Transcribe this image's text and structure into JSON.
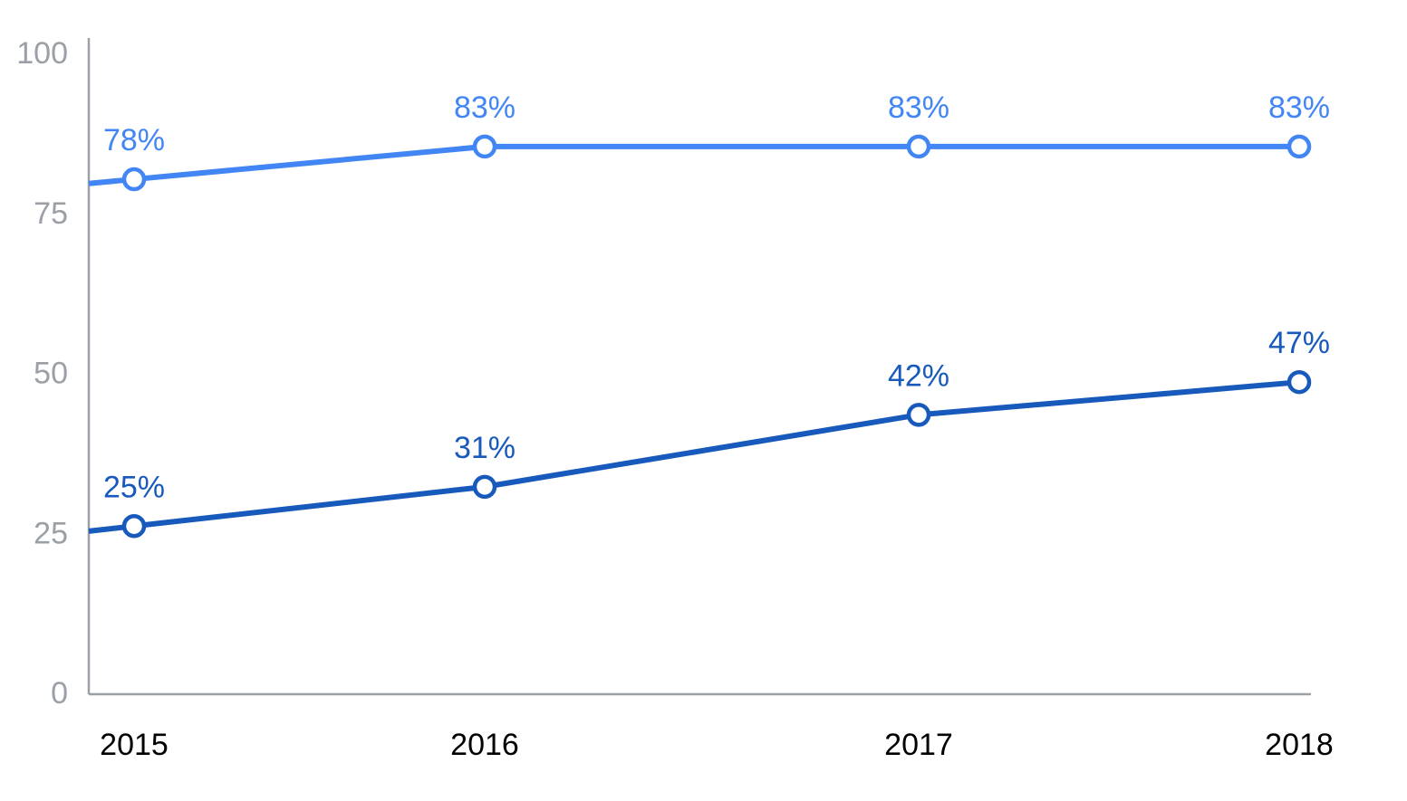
{
  "chart_data": {
    "type": "line",
    "title": "",
    "xlabel": "",
    "ylabel": "",
    "categories": [
      "2015",
      "2016",
      "2017",
      "2018"
    ],
    "ylim": [
      0,
      100
    ],
    "yticks": [
      "0",
      "25",
      "50",
      "75",
      "100"
    ],
    "grid": false,
    "legend": "none",
    "series": [
      {
        "values": [
          78,
          83,
          83,
          83
        ],
        "labels": [
          "78%",
          "83%",
          "83%",
          "83%"
        ],
        "color": "#4285f4"
      },
      {
        "values": [
          25,
          31,
          42,
          47
        ],
        "labels": [
          "25%",
          "31%",
          "42%",
          "47%"
        ],
        "color": "#185abc"
      }
    ],
    "axis_color": "#9aa0a6"
  }
}
